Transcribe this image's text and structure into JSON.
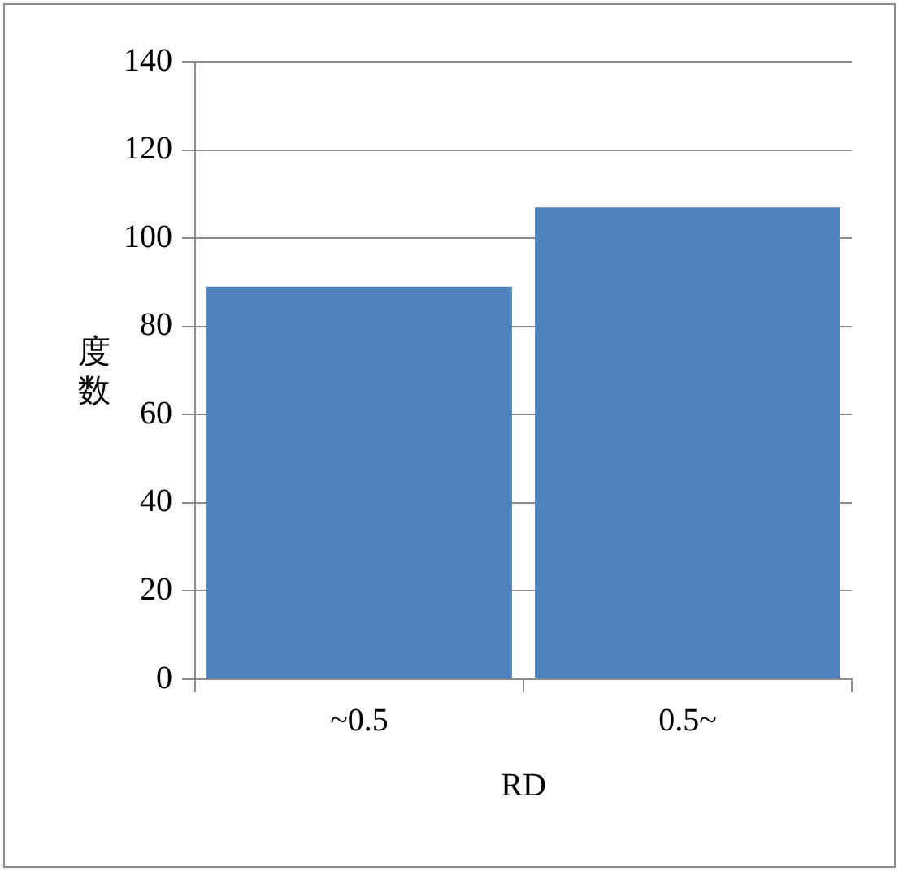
{
  "chart_data": {
    "type": "bar",
    "xlabel": "RD",
    "ylabel": "度数",
    "categories": [
      "~0.5",
      "0.5~"
    ],
    "values": [
      89,
      107
    ],
    "color": "#4f81bd",
    "ylim": [
      0,
      140
    ],
    "yticks": [
      0,
      20,
      40,
      60,
      80,
      100,
      120,
      140
    ],
    "grid": "y",
    "legend": false
  }
}
